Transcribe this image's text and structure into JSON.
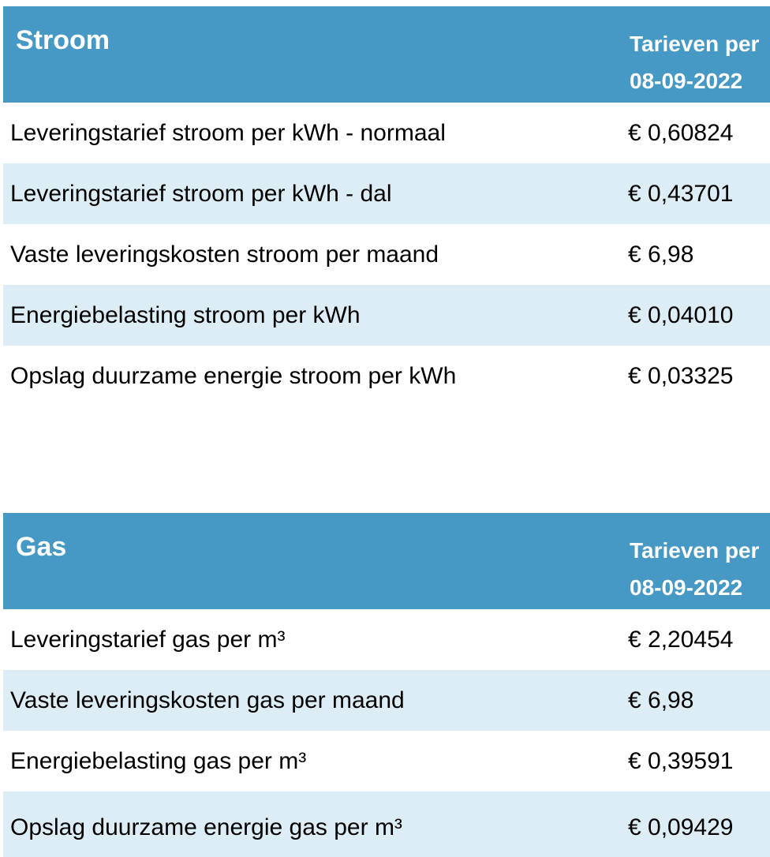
{
  "colors": {
    "accent": "#4599c4",
    "row_alt": "#dcedf5",
    "header_text": "#ffffff",
    "body_text": "#000000"
  },
  "tables": [
    {
      "title": "Stroom",
      "period_label": "Tarieven per",
      "period_date": "08-09-2022",
      "rows": [
        {
          "label": "Leveringstarief stroom per kWh - normaal",
          "value": "€ 0,60824"
        },
        {
          "label": "Leveringstarief stroom per kWh - dal",
          "value": "€ 0,43701"
        },
        {
          "label": "Vaste leveringskosten stroom per maand",
          "value": "€ 6,98"
        },
        {
          "label": "Energiebelasting stroom per kWh",
          "value": "€ 0,04010"
        },
        {
          "label": "Opslag duurzame energie stroom per kWh",
          "value": "€ 0,03325"
        }
      ]
    },
    {
      "title": "Gas",
      "period_label": "Tarieven per",
      "period_date": "08-09-2022",
      "rows": [
        {
          "label": "Leveringstarief gas per m³",
          "value": "€ 2,20454"
        },
        {
          "label": "Vaste leveringskosten gas per maand",
          "value": "€ 6,98"
        },
        {
          "label": "Energiebelasting gas per m³",
          "value": "€ 0,39591"
        },
        {
          "label": "Opslag duurzame energie gas per m³",
          "value": "€ 0,09429"
        }
      ]
    }
  ]
}
